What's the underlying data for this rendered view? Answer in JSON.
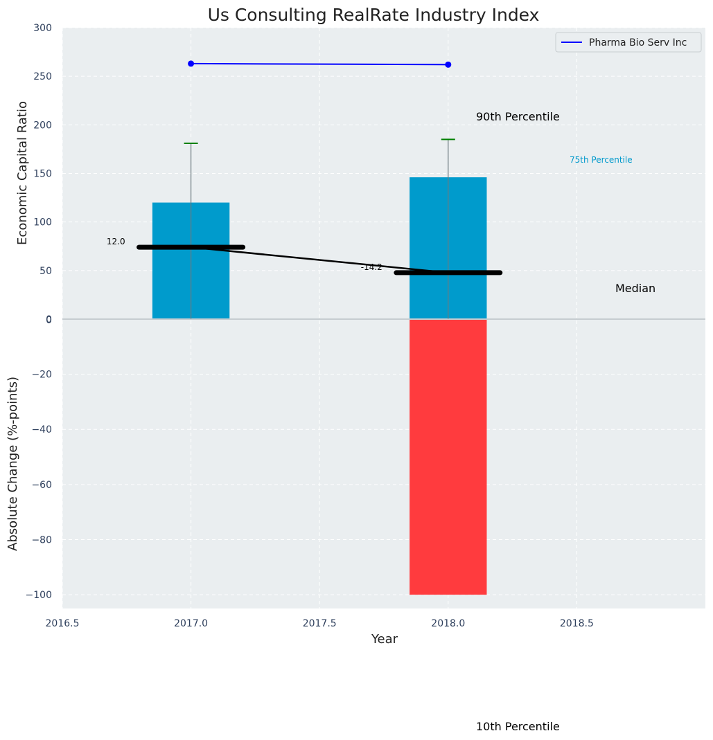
{
  "chart_data": {
    "title": "Us Consulting RealRate Industry Index",
    "xlabel": "Year",
    "x_ticks": [
      "2016.5",
      "2017.0",
      "2017.5",
      "2018.0",
      "2018.5"
    ],
    "xlim": [
      2016.5,
      2019.0
    ],
    "top_panel": {
      "type": "bar",
      "ylabel": "Economic Capital Ratio",
      "ylim": [
        0,
        300
      ],
      "y_ticks": [
        "300",
        "250",
        "200",
        "150",
        "100",
        "50",
        "0"
      ],
      "bar_color": "#009bcc",
      "bars": [
        {
          "x": 2017.0,
          "value": 120
        },
        {
          "x": 2018.0,
          "value": 146
        }
      ],
      "whiskers": [
        {
          "x": 2017.0,
          "upper": 181
        },
        {
          "x": 2018.0,
          "upper": 185
        }
      ],
      "company_series": {
        "name": "Pharma Bio Serv Inc",
        "color": "#0000ff",
        "x": [
          2017.0,
          2018.0
        ],
        "y": [
          263,
          262
        ]
      },
      "median_series": {
        "x": [
          2017.0,
          2018.0
        ],
        "y": [
          12.0,
          -14.2
        ],
        "labels": [
          "12.0",
          "-14.2"
        ]
      }
    },
    "bottom_panel": {
      "type": "bar",
      "ylabel": "Absolute Change (%-points)",
      "ylim": [
        -105,
        0
      ],
      "y_ticks": [
        "0",
        "−20",
        "−40",
        "−60",
        "−80",
        "−100"
      ],
      "bar_color": "#ff3b3e",
      "bars": [
        {
          "x": 2018.0,
          "value": -100
        }
      ]
    },
    "annotations": {
      "p90": "90th Percentile",
      "p75": "75th Percentile",
      "median": "Median",
      "p10": "10th Percentile"
    },
    "legend": {
      "position": "top-right",
      "label": "Pharma Bio Serv Inc"
    }
  }
}
